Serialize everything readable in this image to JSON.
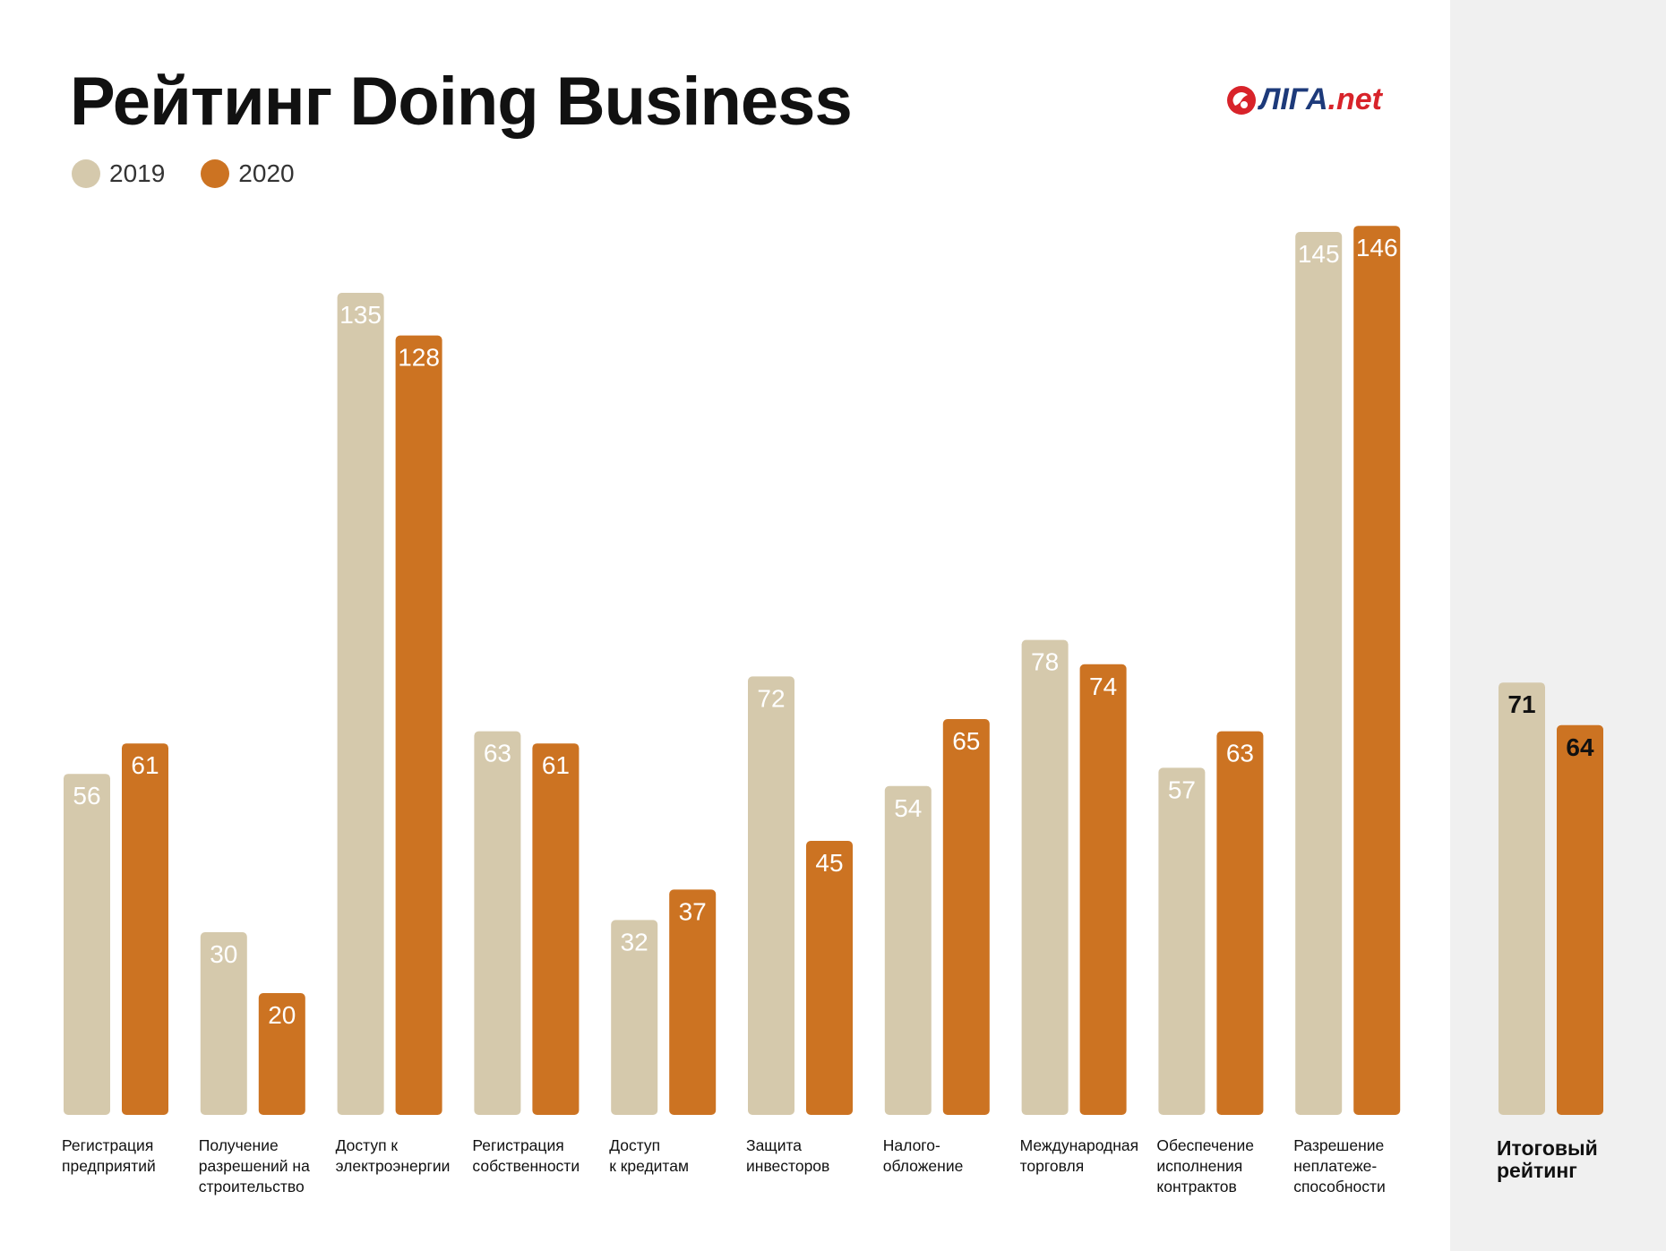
{
  "title": "Рейтинг Doing Business",
  "logo": {
    "main": "ЛІГА",
    "accent": ".net"
  },
  "colors": {
    "series_2019": "#d5c9ac",
    "series_2020": "#cc7322",
    "panel": "#f0f0f0",
    "logo_red": "#d8232a",
    "logo_blue": "#1d3a7a"
  },
  "legend": [
    {
      "label": "2019",
      "color": "#d5c9ac"
    },
    {
      "label": "2020",
      "color": "#cc7322"
    }
  ],
  "chart_data": {
    "type": "bar",
    "title": "Рейтинг Doing Business",
    "categories": [
      [
        "Регистрация",
        "предприятий"
      ],
      [
        "Получение",
        "разрешений на",
        "строительство"
      ],
      [
        "Доступ к",
        "электроэнергии"
      ],
      [
        "Регистрация",
        "собственности"
      ],
      [
        "Доступ",
        "к кредитам"
      ],
      [
        "Защита",
        "инвесторов"
      ],
      [
        "Налого-",
        "обложение"
      ],
      [
        "Международная",
        "торговля"
      ],
      [
        "Обеспечение",
        "исполнения",
        "контрактов"
      ],
      [
        "Разрешение",
        "неплатеже-",
        "способности"
      ]
    ],
    "series": [
      {
        "name": "2019",
        "values": [
          56,
          30,
          135,
          63,
          32,
          72,
          54,
          78,
          57,
          145
        ]
      },
      {
        "name": "2020",
        "values": [
          61,
          20,
          128,
          61,
          37,
          45,
          65,
          74,
          63,
          146
        ]
      }
    ],
    "summary": {
      "label": [
        "Итоговый",
        "рейтинг"
      ],
      "values": [
        71,
        64
      ]
    },
    "legend_position": "top-left",
    "grid": false
  }
}
